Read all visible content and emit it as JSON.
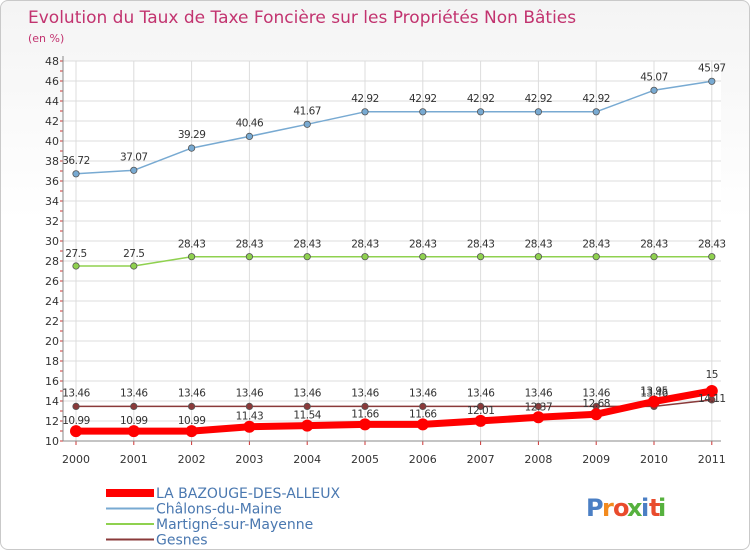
{
  "chart_data": {
    "type": "line",
    "title": "Evolution du Taux de Taxe Foncière sur les Propriétés Non Bâties",
    "subtitle": "(en %)",
    "xlabel": "",
    "ylabel": "",
    "categories": [
      "2000",
      "2001",
      "2002",
      "2003",
      "2004",
      "2005",
      "2006",
      "2007",
      "2008",
      "2009",
      "2010",
      "2011"
    ],
    "ylim": [
      10,
      48
    ],
    "yticks": [
      "10",
      "12",
      "14",
      "16",
      "18",
      "20",
      "22",
      "24",
      "26",
      "28",
      "30",
      "32",
      "34",
      "36",
      "38",
      "40",
      "42",
      "44",
      "46",
      "48"
    ],
    "grid": true,
    "legend": "bottom-left",
    "series": [
      {
        "name": "LA BAZOUGE-DES-ALLEUX",
        "color": "#ff0000",
        "values": [
          10.99,
          10.99,
          10.99,
          11.43,
          11.54,
          11.66,
          11.66,
          12.01,
          12.37,
          12.68,
          13.95,
          15
        ],
        "labels": [
          "10.99",
          "10.99",
          "10.99",
          "11.43",
          "11.54",
          "11.66",
          "11.66",
          "12.01",
          "12.37",
          "12.68",
          "13.95",
          "15"
        ]
      },
      {
        "name": "Châlons-du-Maine",
        "color": "#78aad2",
        "values": [
          36.72,
          37.07,
          39.29,
          40.46,
          41.67,
          42.92,
          42.92,
          42.92,
          42.92,
          42.92,
          45.07,
          45.97
        ],
        "labels": [
          "36.72",
          "37.07",
          "39.29",
          "40.46",
          "41.67",
          "42.92",
          "42.92",
          "42.92",
          "42.92",
          "42.92",
          "45.07",
          "45.97"
        ]
      },
      {
        "name": "Martigné-sur-Mayenne",
        "color": "#8fd14f",
        "values": [
          27.5,
          27.5,
          28.43,
          28.43,
          28.43,
          28.43,
          28.43,
          28.43,
          28.43,
          28.43,
          28.43,
          28.43
        ],
        "labels": [
          "27.5",
          "27.5",
          "28.43",
          "28.43",
          "28.43",
          "28.43",
          "28.43",
          "28.43",
          "28.43",
          "28.43",
          "28.43",
          "28.43"
        ]
      },
      {
        "name": "Gesnes",
        "color": "#8a3a3a",
        "values": [
          13.46,
          13.46,
          13.46,
          13.46,
          13.46,
          13.46,
          13.46,
          13.46,
          13.46,
          13.46,
          13.46,
          14.11
        ],
        "labels": [
          "13.46",
          "13.46",
          "13.46",
          "13.46",
          "13.46",
          "13.46",
          "13.46",
          "13.46",
          "13.46",
          "13.46",
          "13.46",
          "14.11"
        ]
      }
    ]
  },
  "brand": {
    "logo_text": "Proxiti"
  }
}
